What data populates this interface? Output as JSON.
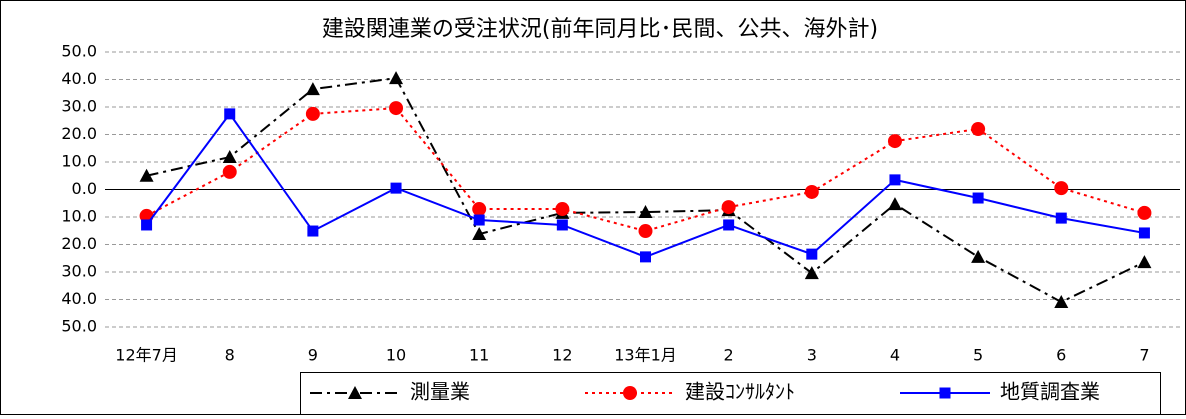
{
  "chart_data": {
    "type": "line",
    "title": "建設関連業の受注状況(前年同月比･民間、公共、海外計)",
    "categories": [
      "12年7月",
      "8",
      "9",
      "10",
      "11",
      "12",
      "13年1月",
      "2",
      "3",
      "4",
      "5",
      "6",
      "7"
    ],
    "series": [
      {
        "name": "測量業",
        "color": "#000000",
        "marker": "triangle",
        "dash": "dash-dot",
        "values": [
          5,
          11.8,
          36.5,
          40.5,
          -16.2,
          -8.5,
          -8.2,
          -7.5,
          -30.4,
          -5.3,
          -24.5,
          -40.9,
          -26.4
        ]
      },
      {
        "name": "建設ｺﾝｻﾙﾀﾝﾄ",
        "color": "#ff0000",
        "marker": "circle",
        "dash": "dotted",
        "values": [
          -9.6,
          6.4,
          27.5,
          29.6,
          -7.1,
          -7.1,
          -15.1,
          -6.4,
          -0.9,
          17.6,
          22,
          0.5,
          -8.5
        ]
      },
      {
        "name": "地質調査業",
        "color": "#0000ff",
        "marker": "square",
        "dash": "solid",
        "values": [
          -12.9,
          27.5,
          -15.1,
          0.5,
          -11.1,
          -12.9,
          -24.5,
          -12.9,
          -23.5,
          3.5,
          -3.1,
          -10.4,
          -15.8
        ]
      }
    ],
    "ylim": [
      -50,
      50
    ],
    "yticks": [
      {
        "value": 50,
        "label": "50.0"
      },
      {
        "value": 40,
        "label": "40.0"
      },
      {
        "value": 30,
        "label": "30.0"
      },
      {
        "value": 20,
        "label": "20.0"
      },
      {
        "value": 10,
        "label": "10.0"
      },
      {
        "value": 0,
        "label": "0.0"
      },
      {
        "value": -10,
        "label": "10.0"
      },
      {
        "value": -20,
        "label": "20.0"
      },
      {
        "value": -30,
        "label": "30.0"
      },
      {
        "value": -40,
        "label": "40.0"
      },
      {
        "value": -50,
        "label": "50.0"
      }
    ],
    "grid": true,
    "legend": "bottom"
  }
}
